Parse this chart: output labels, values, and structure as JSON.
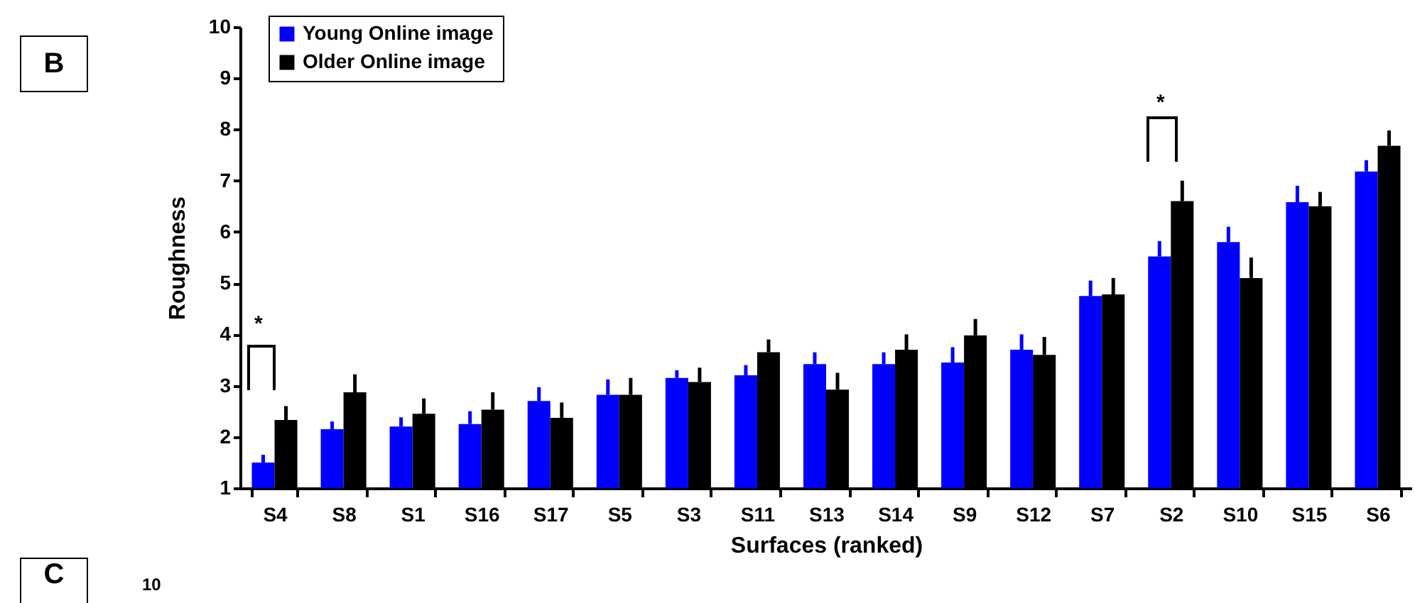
{
  "chart_data": {
    "type": "bar",
    "xlabel": "Surfaces (ranked)",
    "ylabel": "Roughness",
    "categories": [
      "S4",
      "S8",
      "S1",
      "S16",
      "S17",
      "S5",
      "S3",
      "S11",
      "S13",
      "S14",
      "S9",
      "S12",
      "S7",
      "S2",
      "S10",
      "S15",
      "S6"
    ],
    "series": [
      {
        "name": "Young Online image",
        "color": "#0000ff",
        "values": [
          1.5,
          2.15,
          2.2,
          2.25,
          2.7,
          2.82,
          3.15,
          3.2,
          3.42,
          3.42,
          3.45,
          3.7,
          4.75,
          5.52,
          5.8,
          6.58,
          7.18
        ],
        "errors": [
          [
            1.5,
            1.65
          ],
          [
            2.15,
            2.3
          ],
          [
            2.2,
            2.38
          ],
          [
            2.25,
            2.5
          ],
          [
            2.7,
            2.97
          ],
          [
            2.82,
            3.12
          ],
          [
            3.15,
            3.3
          ],
          [
            3.2,
            3.4
          ],
          [
            3.42,
            3.65
          ],
          [
            3.42,
            3.65
          ],
          [
            3.45,
            3.75
          ],
          [
            3.7,
            4.0
          ],
          [
            4.75,
            5.05
          ],
          [
            5.52,
            5.82
          ],
          [
            5.8,
            6.1
          ],
          [
            6.58,
            6.9
          ],
          [
            7.18,
            7.4
          ]
        ]
      },
      {
        "name": "Older Online image",
        "color": "#000000",
        "values": [
          2.33,
          2.87,
          2.45,
          2.53,
          2.37,
          2.82,
          3.07,
          3.65,
          2.92,
          3.7,
          3.98,
          3.6,
          4.78,
          6.6,
          5.1,
          6.5,
          7.68
        ],
        "errors": [
          [
            2.33,
            2.6
          ],
          [
            2.87,
            3.22
          ],
          [
            2.45,
            2.75
          ],
          [
            2.53,
            2.87
          ],
          [
            2.37,
            2.67
          ],
          [
            2.82,
            3.15
          ],
          [
            3.07,
            3.35
          ],
          [
            3.65,
            3.9
          ],
          [
            2.92,
            3.25
          ],
          [
            3.7,
            4.0
          ],
          [
            3.98,
            4.3
          ],
          [
            3.6,
            3.95
          ],
          [
            4.78,
            5.1
          ],
          [
            6.6,
            7.0
          ],
          [
            5.1,
            5.5
          ],
          [
            6.5,
            6.78
          ],
          [
            7.68,
            7.98
          ]
        ]
      }
    ],
    "ylim": [
      1,
      10
    ],
    "yticks": [
      1,
      2,
      3,
      4,
      5,
      6,
      7,
      8,
      9,
      10
    ],
    "grid": false,
    "legend": "top left",
    "annotations": [
      "*",
      "*",
      "B",
      "C",
      "10"
    ]
  }
}
